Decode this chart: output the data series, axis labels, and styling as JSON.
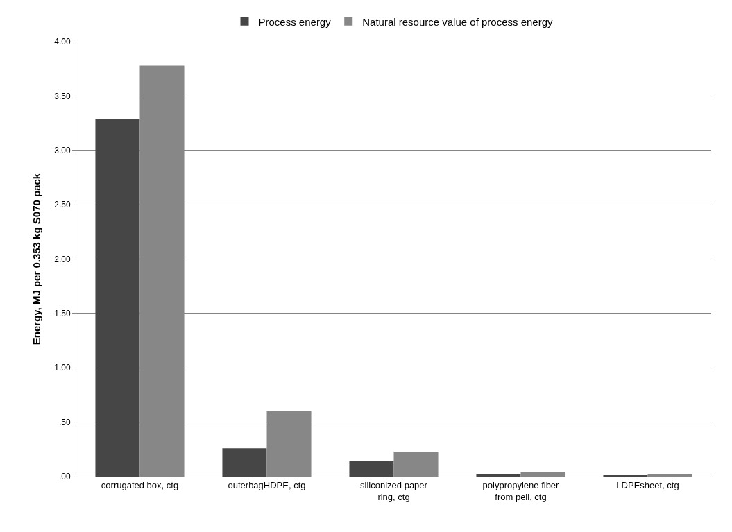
{
  "chart_data": {
    "type": "bar",
    "ylabel": "Energy, MJ per 0.353 kg S070 pack",
    "categories": [
      "corrugated box, ctg",
      "outerbagHDPE, ctg",
      "siliconized paper ring, ctg",
      "polypropylene fiber from pell, ctg",
      "LDPEsheet, ctg"
    ],
    "series": [
      {
        "name": "Process energy",
        "color": "#464646",
        "values": [
          3.29,
          0.26,
          0.14,
          0.025,
          0.01
        ]
      },
      {
        "name": "Natural resource value of process energy",
        "color": "#878787",
        "values": [
          3.78,
          0.6,
          0.23,
          0.045,
          0.02
        ]
      }
    ],
    "ylim": [
      0,
      4
    ],
    "yticks": [
      {
        "value": 0,
        "label": ".00"
      },
      {
        "value": 0.5,
        "label": ".50"
      },
      "1.00",
      "1.50",
      "2.00",
      "2.50",
      "3.00",
      "3.50",
      "4.00"
    ],
    "grid": "y",
    "legend": "top"
  }
}
